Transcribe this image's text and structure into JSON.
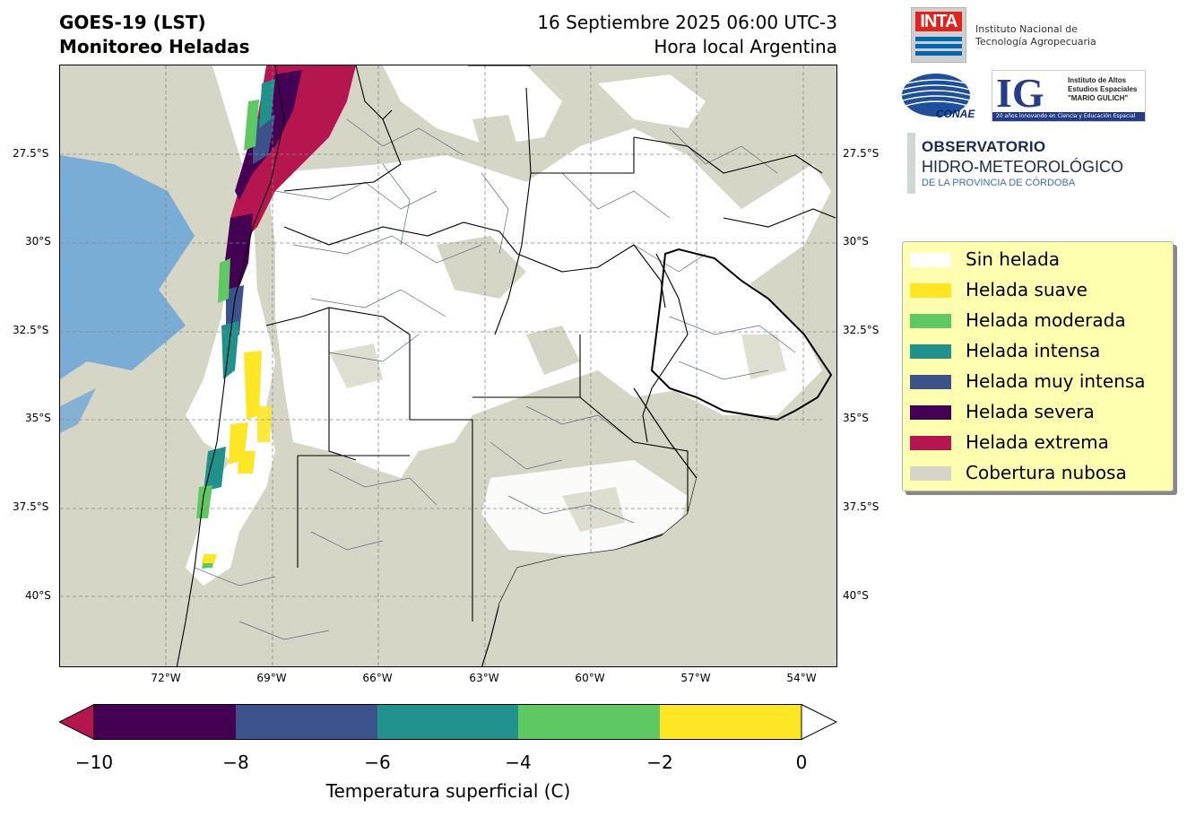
{
  "title": {
    "line1": "GOES-19 (LST)",
    "line2": "Monitoreo Heladas",
    "date": "16 Septiembre 2025 06:00 UTC-3",
    "local": "Hora local Argentina"
  },
  "map": {
    "lat_labels": [
      "27.5°S",
      "30°S",
      "32.5°S",
      "35°S",
      "37.5°S",
      "40°S"
    ],
    "lon_labels": [
      "72°W",
      "69°W",
      "66°W",
      "63°W",
      "60°W",
      "57°W",
      "54°W"
    ],
    "colors": {
      "cloud": "#d6d6c6",
      "water": "#6fa8d6",
      "no_frost": "#ffffff",
      "border": "#000000",
      "department": "#5a6a80"
    }
  },
  "logos": {
    "inta": "INTA",
    "inta_caption_1": "Instituto Nacional de",
    "inta_caption_2": "Tecnología Agropecuaria",
    "conae": "CONAE",
    "ig": "IG",
    "ig_text_1": "Instituto de Altos",
    "ig_text_2": "Estudios Espaciales",
    "ig_text_3": "\"MARIO GULICH\"",
    "ig_bar": "20 años innovando en Ciencia y Educación Espacial",
    "obs_1": "OBSERVATORIO",
    "obs_2": "HIDRO-METEOROLÓGICO",
    "obs_3": "DE LA PROVINCIA DE CÓRDOBA"
  },
  "legend": [
    {
      "label": "Sin helada",
      "color": "#ffffff"
    },
    {
      "label": "Helada suave",
      "color": "#fde725"
    },
    {
      "label": "Helada moderada",
      "color": "#5ec962"
    },
    {
      "label": "Helada intensa",
      "color": "#21918c"
    },
    {
      "label": "Helada muy intensa",
      "color": "#3b528b"
    },
    {
      "label": "Helada severa",
      "color": "#440154"
    },
    {
      "label": "Helada extrema",
      "color": "#b5164f"
    },
    {
      "label": "Cobertura nubosa",
      "color": "#d6d6c6"
    }
  ],
  "colorbar": {
    "ticks": [
      "−10",
      "−8",
      "−6",
      "−4",
      "−2",
      "0"
    ],
    "label": "Temperatura superficial (C)",
    "colors": [
      "#440154",
      "#3b528b",
      "#21918c",
      "#5ec962",
      "#fde725"
    ],
    "under_color": "#b5164f",
    "over_color": "#ffffff"
  }
}
